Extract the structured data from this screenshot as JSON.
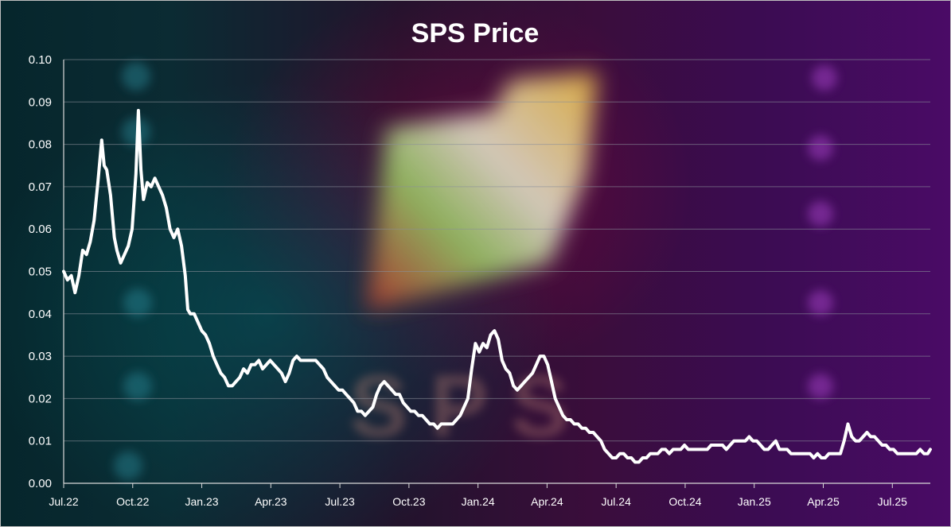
{
  "chart_data": {
    "type": "line",
    "title": "SPS Price",
    "xlabel": "",
    "ylabel": "",
    "ylim": [
      0,
      0.1
    ],
    "yticks": [
      "0.00",
      "0.01",
      "0.02",
      "0.03",
      "0.04",
      "0.05",
      "0.06",
      "0.07",
      "0.08",
      "0.09",
      "0.10"
    ],
    "xticks": [
      "Jul.22",
      "Oct.22",
      "Jan.23",
      "Apr.23",
      "Jul.23",
      "Oct.23",
      "Jan.24",
      "Apr.24",
      "Jul.24",
      "Oct.24",
      "Jan.25",
      "Apr.25",
      "Jul.25"
    ],
    "grid": true,
    "legend": "none",
    "series": [
      {
        "color": "#ffffff",
        "points": [
          [
            0,
            0.05
          ],
          [
            3,
            0.048
          ],
          [
            6,
            0.049
          ],
          [
            9,
            0.045
          ],
          [
            12,
            0.049
          ],
          [
            15,
            0.055
          ],
          [
            18,
            0.054
          ],
          [
            21,
            0.057
          ],
          [
            24,
            0.062
          ],
          [
            27,
            0.071
          ],
          [
            30,
            0.081
          ],
          [
            32,
            0.075
          ],
          [
            34,
            0.074
          ],
          [
            37,
            0.068
          ],
          [
            40,
            0.058
          ],
          [
            42,
            0.055
          ],
          [
            45,
            0.052
          ],
          [
            48,
            0.054
          ],
          [
            51,
            0.056
          ],
          [
            54,
            0.06
          ],
          [
            57,
            0.073
          ],
          [
            59,
            0.088
          ],
          [
            61,
            0.074
          ],
          [
            63,
            0.067
          ],
          [
            66,
            0.071
          ],
          [
            69,
            0.07
          ],
          [
            72,
            0.072
          ],
          [
            75,
            0.07
          ],
          [
            78,
            0.068
          ],
          [
            81,
            0.065
          ],
          [
            84,
            0.06
          ],
          [
            87,
            0.058
          ],
          [
            90,
            0.06
          ],
          [
            93,
            0.056
          ],
          [
            96,
            0.049
          ],
          [
            98,
            0.041
          ],
          [
            100,
            0.04
          ],
          [
            103,
            0.04
          ],
          [
            106,
            0.038
          ],
          [
            109,
            0.036
          ],
          [
            112,
            0.035
          ],
          [
            115,
            0.033
          ],
          [
            118,
            0.03
          ],
          [
            121,
            0.028
          ],
          [
            124,
            0.026
          ],
          [
            127,
            0.025
          ],
          [
            130,
            0.023
          ],
          [
            133,
            0.023
          ],
          [
            136,
            0.024
          ],
          [
            139,
            0.025
          ],
          [
            142,
            0.027
          ],
          [
            145,
            0.026
          ],
          [
            148,
            0.028
          ],
          [
            151,
            0.028
          ],
          [
            154,
            0.029
          ],
          [
            157,
            0.027
          ],
          [
            160,
            0.028
          ],
          [
            163,
            0.029
          ],
          [
            166,
            0.028
          ],
          [
            169,
            0.027
          ],
          [
            172,
            0.026
          ],
          [
            175,
            0.024
          ],
          [
            178,
            0.026
          ],
          [
            181,
            0.029
          ],
          [
            184,
            0.03
          ],
          [
            187,
            0.029
          ],
          [
            190,
            0.029
          ],
          [
            193,
            0.029
          ],
          [
            196,
            0.029
          ],
          [
            199,
            0.029
          ],
          [
            202,
            0.028
          ],
          [
            205,
            0.027
          ],
          [
            208,
            0.025
          ],
          [
            211,
            0.024
          ],
          [
            214,
            0.023
          ],
          [
            217,
            0.022
          ],
          [
            220,
            0.022
          ],
          [
            223,
            0.021
          ],
          [
            226,
            0.02
          ],
          [
            229,
            0.019
          ],
          [
            232,
            0.017
          ],
          [
            235,
            0.017
          ],
          [
            238,
            0.016
          ],
          [
            241,
            0.017
          ],
          [
            244,
            0.018
          ],
          [
            247,
            0.021
          ],
          [
            250,
            0.023
          ],
          [
            253,
            0.024
          ],
          [
            256,
            0.023
          ],
          [
            259,
            0.022
          ],
          [
            262,
            0.021
          ],
          [
            265,
            0.021
          ],
          [
            268,
            0.019
          ],
          [
            271,
            0.018
          ],
          [
            274,
            0.017
          ],
          [
            277,
            0.017
          ],
          [
            280,
            0.016
          ],
          [
            283,
            0.016
          ],
          [
            286,
            0.015
          ],
          [
            289,
            0.014
          ],
          [
            292,
            0.014
          ],
          [
            295,
            0.013
          ],
          [
            298,
            0.014
          ],
          [
            301,
            0.014
          ],
          [
            304,
            0.014
          ],
          [
            307,
            0.014
          ],
          [
            310,
            0.015
          ],
          [
            313,
            0.016
          ],
          [
            316,
            0.018
          ],
          [
            319,
            0.02
          ],
          [
            322,
            0.027
          ],
          [
            325,
            0.033
          ],
          [
            328,
            0.031
          ],
          [
            331,
            0.033
          ],
          [
            334,
            0.032
          ],
          [
            337,
            0.035
          ],
          [
            340,
            0.036
          ],
          [
            343,
            0.034
          ],
          [
            346,
            0.029
          ],
          [
            349,
            0.027
          ],
          [
            352,
            0.026
          ],
          [
            355,
            0.023
          ],
          [
            358,
            0.022
          ],
          [
            361,
            0.023
          ],
          [
            364,
            0.024
          ],
          [
            367,
            0.025
          ],
          [
            370,
            0.026
          ],
          [
            373,
            0.028
          ],
          [
            376,
            0.03
          ],
          [
            379,
            0.03
          ],
          [
            382,
            0.028
          ],
          [
            385,
            0.024
          ],
          [
            388,
            0.02
          ],
          [
            391,
            0.018
          ],
          [
            394,
            0.016
          ],
          [
            397,
            0.015
          ],
          [
            400,
            0.015
          ],
          [
            403,
            0.014
          ],
          [
            406,
            0.014
          ],
          [
            409,
            0.013
          ],
          [
            412,
            0.013
          ],
          [
            415,
            0.012
          ],
          [
            418,
            0.012
          ],
          [
            421,
            0.011
          ],
          [
            424,
            0.01
          ],
          [
            427,
            0.008
          ],
          [
            430,
            0.007
          ],
          [
            433,
            0.006
          ],
          [
            436,
            0.006
          ],
          [
            439,
            0.007
          ],
          [
            442,
            0.007
          ],
          [
            445,
            0.006
          ],
          [
            448,
            0.006
          ],
          [
            451,
            0.005
          ],
          [
            454,
            0.005
          ],
          [
            457,
            0.006
          ],
          [
            460,
            0.006
          ],
          [
            463,
            0.007
          ],
          [
            466,
            0.007
          ],
          [
            469,
            0.007
          ],
          [
            472,
            0.008
          ],
          [
            475,
            0.008
          ],
          [
            478,
            0.007
          ],
          [
            481,
            0.008
          ],
          [
            484,
            0.008
          ],
          [
            487,
            0.008
          ],
          [
            490,
            0.009
          ],
          [
            493,
            0.008
          ],
          [
            496,
            0.008
          ],
          [
            499,
            0.008
          ],
          [
            502,
            0.008
          ],
          [
            505,
            0.008
          ],
          [
            508,
            0.008
          ],
          [
            511,
            0.009
          ],
          [
            514,
            0.009
          ],
          [
            517,
            0.009
          ],
          [
            520,
            0.009
          ],
          [
            523,
            0.008
          ],
          [
            526,
            0.009
          ],
          [
            529,
            0.01
          ],
          [
            532,
            0.01
          ],
          [
            535,
            0.01
          ],
          [
            538,
            0.01
          ],
          [
            541,
            0.011
          ],
          [
            544,
            0.01
          ],
          [
            547,
            0.01
          ],
          [
            550,
            0.009
          ],
          [
            553,
            0.008
          ],
          [
            556,
            0.008
          ],
          [
            559,
            0.009
          ],
          [
            562,
            0.01
          ],
          [
            565,
            0.008
          ],
          [
            568,
            0.008
          ],
          [
            571,
            0.008
          ],
          [
            574,
            0.007
          ],
          [
            577,
            0.007
          ],
          [
            580,
            0.007
          ],
          [
            583,
            0.007
          ],
          [
            586,
            0.007
          ],
          [
            589,
            0.007
          ],
          [
            592,
            0.006
          ],
          [
            595,
            0.007
          ],
          [
            598,
            0.006
          ],
          [
            601,
            0.006
          ],
          [
            604,
            0.007
          ],
          [
            607,
            0.007
          ],
          [
            610,
            0.007
          ],
          [
            613,
            0.007
          ],
          [
            616,
            0.01
          ],
          [
            619,
            0.014
          ],
          [
            622,
            0.011
          ],
          [
            625,
            0.01
          ],
          [
            628,
            0.01
          ],
          [
            631,
            0.011
          ],
          [
            634,
            0.012
          ],
          [
            637,
            0.011
          ],
          [
            640,
            0.011
          ],
          [
            643,
            0.01
          ],
          [
            646,
            0.009
          ],
          [
            649,
            0.009
          ],
          [
            652,
            0.008
          ],
          [
            655,
            0.008
          ],
          [
            658,
            0.007
          ],
          [
            661,
            0.007
          ],
          [
            664,
            0.007
          ],
          [
            667,
            0.007
          ],
          [
            670,
            0.007
          ],
          [
            673,
            0.007
          ],
          [
            676,
            0.008
          ],
          [
            679,
            0.007
          ],
          [
            682,
            0.007
          ],
          [
            684,
            0.008
          ]
        ]
      }
    ]
  },
  "background": {
    "logo_text": "SPS",
    "accent_colors": [
      "#0a2a30",
      "#3a0d3b",
      "#4a0b66"
    ]
  }
}
